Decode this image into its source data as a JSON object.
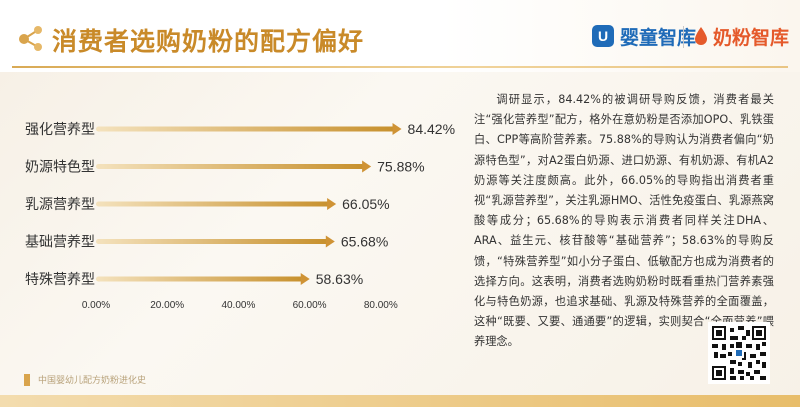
{
  "header": {
    "title": "消费者选购奶粉的配方偏好",
    "brand_primary": "婴童智库",
    "brand_secondary": "奶粉智库",
    "brand_primary_badge": "U"
  },
  "chart_data": {
    "type": "bar",
    "orientation": "horizontal",
    "categories": [
      "强化营养型",
      "奶源特色型",
      "乳源营养型",
      "基础营养型",
      "特殊营养型"
    ],
    "values": [
      84.42,
      75.88,
      66.05,
      65.68,
      58.63
    ],
    "value_labels": [
      "84.42%",
      "75.88%",
      "66.05%",
      "65.68%",
      "58.63%"
    ],
    "xlim": [
      0,
      80
    ],
    "x_ticks": [
      "0.00%",
      "20.00%",
      "40.00%",
      "60.00%",
      "80.00%"
    ],
    "grid": false,
    "bar_color_start": "#f4e2bd",
    "bar_color_end": "#c7902c",
    "marker_color": "#cf9335"
  },
  "description": "调研显示，84.42%的被调研导购反馈，消费者最关注“强化营养型”配方，格外在意奶粉是否添加OPO、乳铁蛋白、CPP等高阶营养素。75.88%的导购认为消费者偏向“奶源特色型”，对A2蛋白奶源、进口奶源、有机奶源、有机A2奶源等关注度颇高。此外，66.05%的导购指出消费者重视“乳源营养型”，关注乳源HMO、活性免疫蛋白、乳源燕窝酸等成分；65.68%的导购表示消费者同样关注DHA、ARA、益生元、核苷酸等“基础营养”；58.63%的导购反馈，“特殊营养型”如小分子蛋白、低敏配方也成为消费者的选择方向。这表明，消费者选购奶粉时既看重热门营养素强化与特色奶源，也追求基础、乳源及特殊营养的全面覆盖，这种“既要、又要、通通要”的逻辑，实则契合“全面营养”喂养理念。",
  "footer": {
    "text": "中国婴幼儿配方奶粉进化史"
  },
  "colors": {
    "title": "#c98a29",
    "accent": "#d9a44c",
    "brand_blue": "#1f6bb8",
    "brand_orange": "#e55a2b"
  }
}
